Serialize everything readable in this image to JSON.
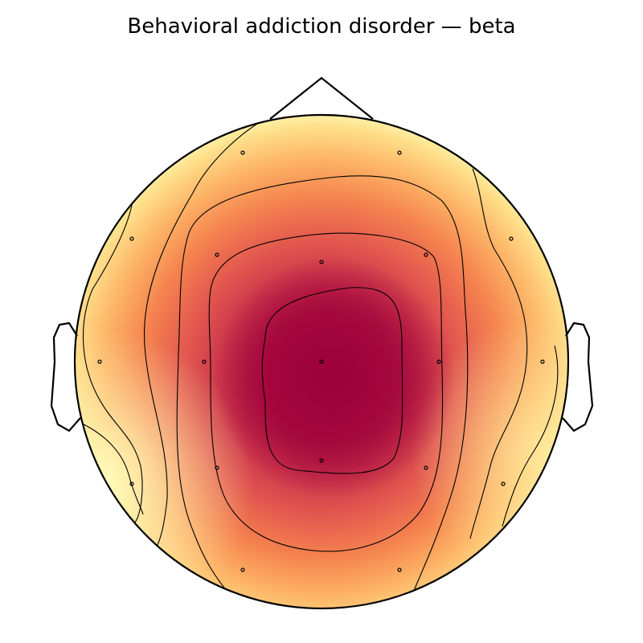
{
  "chart_data": {
    "type": "heatmap",
    "subtype": "eeg-topomap",
    "title": "Behavioral addiction disorder — beta",
    "colormap": "yellow-orange-red-magenta",
    "colorbar": false,
    "head_outline": true,
    "nose": true,
    "ears": true,
    "contour_lines": true,
    "sensors_shown": true,
    "sensors": [
      {
        "id": "S1"
      },
      {
        "id": "S2"
      },
      {
        "id": "S3"
      },
      {
        "id": "S4"
      },
      {
        "id": "S5"
      },
      {
        "id": "S6"
      },
      {
        "id": "S7"
      },
      {
        "id": "S8"
      },
      {
        "id": "S9"
      },
      {
        "id": "S10"
      },
      {
        "id": "S11"
      },
      {
        "id": "S12"
      },
      {
        "id": "S13"
      },
      {
        "id": "S14"
      },
      {
        "id": "S15"
      },
      {
        "id": "S16"
      },
      {
        "id": "S17"
      },
      {
        "id": "S18"
      },
      {
        "id": "S19"
      }
    ],
    "sensor_values": [
      0.35,
      0.35,
      0.15,
      0.72,
      0.92,
      0.72,
      0.15,
      0.05,
      0.7,
      1.0,
      0.7,
      0.05,
      0.0,
      0.7,
      0.9,
      0.7,
      0.0,
      0.55,
      0.55
    ],
    "contour_levels": [
      0.15,
      0.3,
      0.45,
      0.62,
      0.82
    ]
  }
}
